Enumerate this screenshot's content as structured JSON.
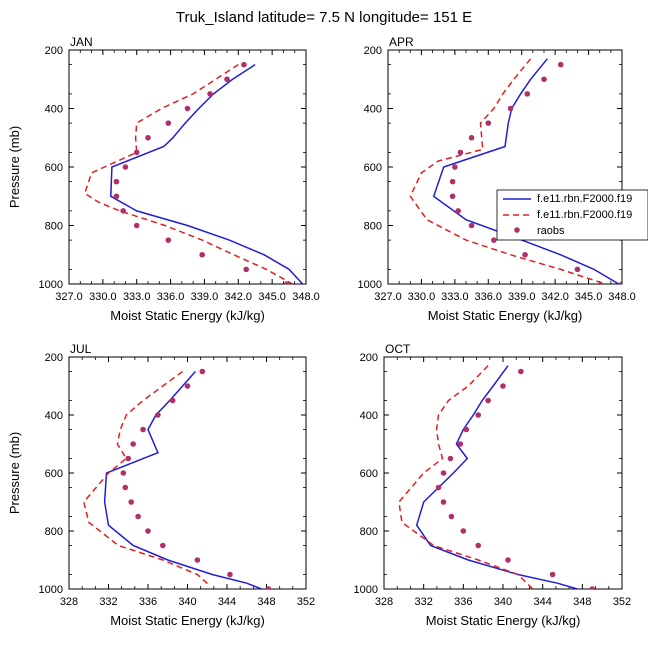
{
  "figure_title": "Truk_Island  latitude= 7.5 N longitude= 151 E",
  "colors": {
    "model1": "#1f1fd6",
    "model2": "#e02020",
    "raobs": "#b0306a"
  },
  "legend": {
    "entries": [
      "f.e11.rbn.F2000.f19",
      "f.e11.rbn.F2000.f19",
      "raobs"
    ]
  },
  "chart_data": [
    {
      "type": "line",
      "title": "JAN",
      "xlabel": "Moist Static Energy (kJ/kg)",
      "ylabel": "Pressure (mb)",
      "xlim": [
        327,
        348
      ],
      "ylim": [
        1000,
        200
      ],
      "xticks": [
        327,
        330,
        333,
        336,
        339,
        342,
        345,
        348
      ],
      "xtick_labels": [
        "327.0",
        "330.0",
        "333.0",
        "336.0",
        "339.0",
        "342.0",
        "345.0",
        "348.0"
      ],
      "yticks": [
        200,
        400,
        600,
        800,
        1000
      ],
      "series": [
        {
          "name": "f.e11.rbn.F2000.f19",
          "style": "solid",
          "p": [
            250,
            300,
            350,
            400,
            450,
            500,
            530,
            600,
            700,
            750,
            800,
            850,
            900,
            950,
            1000
          ],
          "x": [
            343.5,
            341.5,
            339.8,
            338.5,
            337.3,
            336.2,
            335.4,
            330.8,
            330.7,
            333.0,
            337.5,
            341.2,
            344.3,
            346.5,
            347.7
          ]
        },
        {
          "name": "f.e11.rbn.F2000.f19",
          "style": "dashed",
          "p": [
            250,
            300,
            350,
            400,
            450,
            500,
            550,
            620,
            690,
            720,
            750,
            800,
            850,
            900,
            950,
            1000
          ],
          "x": [
            342.0,
            340.0,
            338.0,
            335.2,
            333.0,
            332.9,
            333.0,
            329.0,
            328.4,
            329.6,
            331.5,
            335.5,
            338.8,
            341.6,
            344.5,
            346.8
          ]
        }
      ],
      "raobs": {
        "p": [
          250,
          300,
          350,
          400,
          450,
          500,
          550,
          600,
          650,
          700,
          750,
          800,
          850,
          900,
          950,
          1000
        ],
        "x": [
          342.5,
          341.0,
          339.5,
          337.5,
          335.8,
          334.0,
          333.0,
          332.0,
          331.2,
          331.2,
          331.8,
          333.0,
          335.8,
          338.8,
          342.7,
          346.3
        ]
      }
    },
    {
      "type": "line",
      "title": "APR",
      "xlabel": "Moist Static Energy (kJ/kg)",
      "ylabel": "",
      "xlim": [
        327,
        348
      ],
      "ylim": [
        1000,
        200
      ],
      "xticks": [
        327,
        330,
        333,
        336,
        339,
        342,
        345,
        348
      ],
      "xtick_labels": [
        "327.0",
        "330.0",
        "333.0",
        "336.0",
        "339.0",
        "342.0",
        "345.0",
        "348.0"
      ],
      "yticks": [
        200,
        400,
        600,
        800,
        1000
      ],
      "series": [
        {
          "name": "f.e11.rbn.F2000.f19",
          "style": "solid",
          "p": [
            230,
            300,
            350,
            400,
            450,
            530,
            600,
            700,
            780,
            850,
            900,
            950,
            1000
          ],
          "x": [
            341.3,
            339.8,
            338.9,
            338.1,
            337.8,
            337.5,
            332.0,
            331.1,
            334.0,
            339.0,
            342.5,
            345.5,
            347.7
          ]
        },
        {
          "name": "f.e11.rbn.F2000.f19",
          "style": "dashed",
          "p": [
            230,
            300,
            350,
            400,
            450,
            540,
            580,
            620,
            700,
            780,
            850,
            900,
            950,
            1000
          ],
          "x": [
            339.8,
            338.3,
            337.3,
            336.5,
            335.3,
            335.5,
            331.5,
            330.0,
            329.0,
            330.5,
            334.0,
            338.0,
            342.5,
            346.5
          ]
        }
      ],
      "raobs": {
        "p": [
          250,
          300,
          350,
          400,
          450,
          500,
          550,
          600,
          650,
          700,
          750,
          800,
          850,
          900,
          950,
          1000
        ],
        "x": [
          342.5,
          341.0,
          339.5,
          338.0,
          336.0,
          334.5,
          333.5,
          333.0,
          332.8,
          332.8,
          333.3,
          334.5,
          336.5,
          339.3,
          344.0,
          348.0
        ]
      }
    },
    {
      "type": "line",
      "title": "JUL",
      "xlabel": "Moist Static Energy (kJ/kg)",
      "ylabel": "Pressure (mb)",
      "xlim": [
        328,
        352
      ],
      "ylim": [
        1000,
        200
      ],
      "xticks": [
        328,
        332,
        336,
        340,
        344,
        348,
        352
      ],
      "xtick_labels": [
        "328",
        "332",
        "336",
        "340",
        "344",
        "348",
        "352"
      ],
      "yticks": [
        200,
        400,
        600,
        800,
        1000
      ],
      "series": [
        {
          "name": "f.e11.rbn.F2000.f19",
          "style": "solid",
          "p": [
            250,
            300,
            350,
            400,
            450,
            530,
            600,
            700,
            780,
            850,
            900,
            950,
            980,
            1000
          ],
          "x": [
            340.8,
            339.5,
            338.2,
            336.8,
            336.0,
            337.0,
            331.8,
            331.6,
            332.0,
            334.5,
            338.0,
            342.5,
            346.0,
            347.5
          ]
        },
        {
          "name": "f.e11.rbn.F2000.f19",
          "style": "dashed",
          "p": [
            250,
            300,
            350,
            400,
            450,
            500,
            550,
            600,
            700,
            770,
            850,
            900,
            950,
            990
          ],
          "x": [
            339.5,
            337.5,
            335.5,
            333.8,
            333.2,
            332.9,
            333.8,
            332.0,
            329.5,
            330.0,
            333.0,
            337.5,
            341.0,
            342.3
          ]
        }
      ],
      "raobs": {
        "p": [
          250,
          300,
          350,
          400,
          450,
          500,
          550,
          600,
          650,
          700,
          750,
          800,
          850,
          900,
          950,
          1000
        ],
        "x": [
          341.5,
          340.0,
          338.5,
          337.0,
          335.5,
          334.5,
          334.0,
          333.5,
          333.7,
          334.3,
          335.0,
          336.0,
          337.5,
          341.0,
          344.3,
          348.2
        ]
      }
    },
    {
      "type": "line",
      "title": "OCT",
      "xlabel": "Moist Static Energy (kJ/kg)",
      "ylabel": "",
      "xlim": [
        328,
        352
      ],
      "ylim": [
        1000,
        200
      ],
      "xticks": [
        328,
        332,
        336,
        340,
        344,
        348,
        352
      ],
      "xtick_labels": [
        "328",
        "332",
        "336",
        "340",
        "344",
        "348",
        "352"
      ],
      "yticks": [
        200,
        400,
        600,
        800,
        1000
      ],
      "series": [
        {
          "name": "f.e11.rbn.F2000.f19",
          "style": "solid",
          "p": [
            230,
            300,
            350,
            400,
            450,
            500,
            550,
            600,
            700,
            780,
            850,
            900,
            950,
            980,
            1000
          ],
          "x": [
            340.5,
            339.0,
            337.9,
            337.0,
            336.0,
            335.3,
            336.4,
            335.0,
            332.0,
            331.3,
            332.7,
            336.5,
            341.5,
            345.5,
            347.5
          ]
        },
        {
          "name": "f.e11.rbn.F2000.f19",
          "style": "dashed",
          "p": [
            230,
            300,
            350,
            400,
            450,
            500,
            550,
            600,
            700,
            770,
            850,
            900,
            950,
            1000
          ],
          "x": [
            338.5,
            336.5,
            334.5,
            333.5,
            333.3,
            333.5,
            333.9,
            332.0,
            329.5,
            329.8,
            333.0,
            337.5,
            341.5,
            343.0
          ]
        }
      ],
      "raobs": {
        "p": [
          250,
          300,
          350,
          400,
          450,
          500,
          550,
          600,
          650,
          700,
          750,
          800,
          850,
          900,
          950,
          1000
        ],
        "x": [
          341.8,
          340.0,
          338.5,
          337.5,
          336.3,
          335.7,
          334.7,
          334.0,
          333.5,
          334.0,
          334.8,
          336.0,
          337.5,
          340.5,
          345.0,
          349.0
        ]
      }
    }
  ]
}
